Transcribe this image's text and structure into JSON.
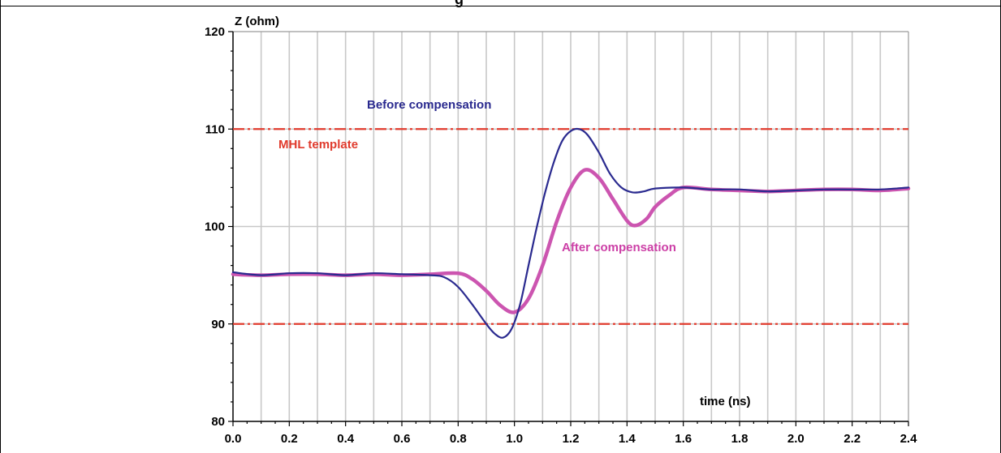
{
  "header": {
    "cut_title": "g"
  },
  "chart_data": {
    "type": "line",
    "title": "",
    "xlabel": "time (ns)",
    "ylabel": "Z (ohm)",
    "xlim": [
      0.0,
      2.4
    ],
    "ylim": [
      80,
      120
    ],
    "x_ticks": [
      "0.0",
      "0.2",
      "0.4",
      "0.6",
      "0.8",
      "1.0",
      "1.2",
      "1.4",
      "1.6",
      "1.8",
      "2.0",
      "2.2",
      "2.4"
    ],
    "y_ticks": [
      "80",
      "90",
      "100",
      "110",
      "120"
    ],
    "grid": true,
    "series": [
      {
        "name": "Before compensation",
        "color": "#2a2a8f",
        "x": [
          0.0,
          0.1,
          0.2,
          0.3,
          0.4,
          0.5,
          0.6,
          0.7,
          0.75,
          0.8,
          0.85,
          0.9,
          0.93,
          0.96,
          0.99,
          1.02,
          1.05,
          1.08,
          1.11,
          1.14,
          1.17,
          1.2,
          1.23,
          1.26,
          1.3,
          1.34,
          1.38,
          1.42,
          1.46,
          1.5,
          1.6,
          1.7,
          1.8,
          1.9,
          2.0,
          2.1,
          2.2,
          2.3,
          2.4
        ],
        "values": [
          95.3,
          95.0,
          95.2,
          95.2,
          95.0,
          95.2,
          95.1,
          95.0,
          94.8,
          93.8,
          92.0,
          90.0,
          89.0,
          88.6,
          89.5,
          92.0,
          96.0,
          100.0,
          103.6,
          106.6,
          108.8,
          109.8,
          110.0,
          109.4,
          107.6,
          105.4,
          104.0,
          103.5,
          103.6,
          103.9,
          104.0,
          103.8,
          103.8,
          103.6,
          103.7,
          103.8,
          103.8,
          103.8,
          104.0
        ]
      },
      {
        "name": "After compensation",
        "color": "#cc55b0",
        "x": [
          0.0,
          0.1,
          0.2,
          0.3,
          0.4,
          0.5,
          0.6,
          0.7,
          0.8,
          0.85,
          0.9,
          0.95,
          1.0,
          1.05,
          1.1,
          1.15,
          1.2,
          1.25,
          1.3,
          1.35,
          1.4,
          1.43,
          1.47,
          1.5,
          1.55,
          1.6,
          1.7,
          1.8,
          1.9,
          2.0,
          2.1,
          2.2,
          2.3,
          2.4
        ],
        "values": [
          95.1,
          95.0,
          95.1,
          95.1,
          95.0,
          95.1,
          95.0,
          95.1,
          95.2,
          94.6,
          93.4,
          91.9,
          91.2,
          92.6,
          96.0,
          100.5,
          104.0,
          105.8,
          105.0,
          102.8,
          100.6,
          100.1,
          100.8,
          102.0,
          103.2,
          104.0,
          103.8,
          103.7,
          103.6,
          103.7,
          103.8,
          103.8,
          103.7,
          103.9
        ]
      }
    ],
    "reference_lines": [
      {
        "name": "MHL template",
        "y": 110,
        "color": "#e03a2c"
      },
      {
        "name": "",
        "y": 90,
        "color": "#e03a2c"
      }
    ]
  }
}
